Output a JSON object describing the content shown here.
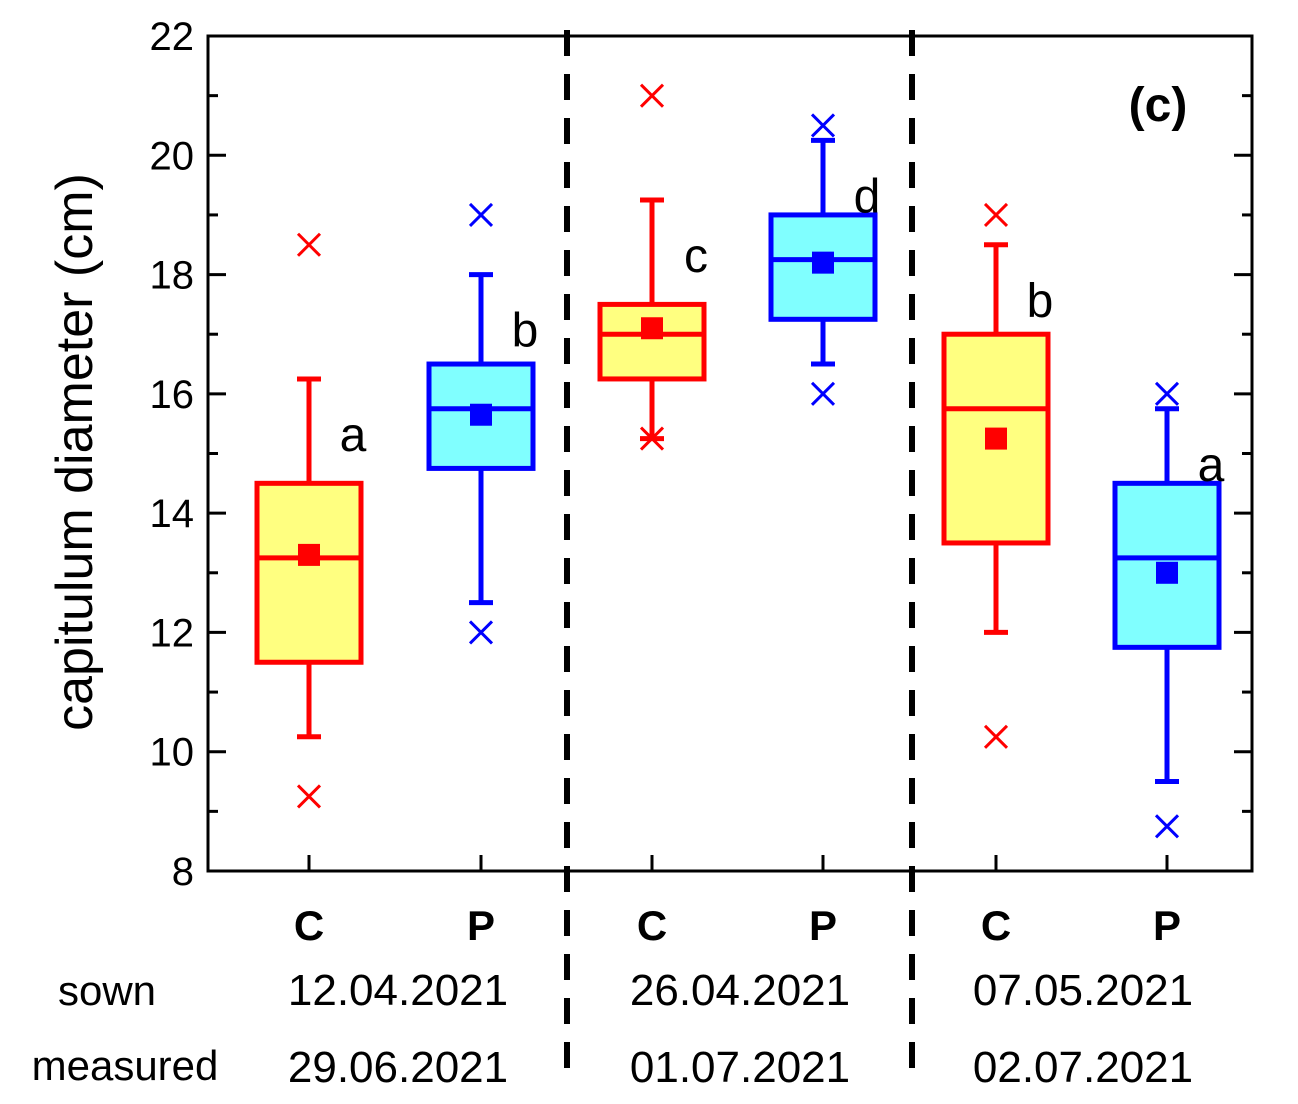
{
  "chart_data": {
    "type": "box",
    "panel_label": "(c)",
    "ylabel": "capitulum diameter (cm)",
    "ylim": [
      8,
      22
    ],
    "yticks": [
      "8",
      "10",
      "12",
      "14",
      "16",
      "18",
      "20",
      "22"
    ],
    "row_labels": {
      "sown": "sown",
      "measured": "measured"
    },
    "groups": [
      {
        "sown": "12.04.2021",
        "measured": "29.06.2021"
      },
      {
        "sown": "26.04.2021",
        "measured": "01.07.2021"
      },
      {
        "sown": "07.05.2021",
        "measured": "02.07.2021"
      }
    ],
    "colors": {
      "C": {
        "stroke": "#ff0000",
        "fill": "#ffff80"
      },
      "P": {
        "stroke": "#0000ff",
        "fill": "#80ffff"
      }
    },
    "boxes": [
      {
        "category": "C",
        "group": 0,
        "q1": 11.5,
        "median": 13.25,
        "q3": 14.5,
        "mean": 13.3,
        "whisker_low": 10.25,
        "whisker_high": 16.25,
        "min": 9.25,
        "max": 18.5,
        "sig": "a"
      },
      {
        "category": "P",
        "group": 0,
        "q1": 14.75,
        "median": 15.75,
        "q3": 16.5,
        "mean": 15.65,
        "whisker_low": 12.5,
        "whisker_high": 18.0,
        "min": 12.0,
        "max": 19.0,
        "sig": "b"
      },
      {
        "category": "C",
        "group": 1,
        "q1": 16.25,
        "median": 17.0,
        "q3": 17.5,
        "mean": 17.1,
        "whisker_low": 15.25,
        "whisker_high": 19.25,
        "min": 15.25,
        "max": 21.0,
        "sig": "c"
      },
      {
        "category": "P",
        "group": 1,
        "q1": 17.25,
        "median": 18.25,
        "q3": 19.0,
        "mean": 18.2,
        "whisker_low": 16.5,
        "whisker_high": 20.25,
        "min": 16.0,
        "max": 20.5,
        "sig": "d"
      },
      {
        "category": "C",
        "group": 2,
        "q1": 13.5,
        "median": 15.75,
        "q3": 17.0,
        "mean": 15.25,
        "whisker_low": 12.0,
        "whisker_high": 18.5,
        "min": 10.25,
        "max": 19.0,
        "sig": "b"
      },
      {
        "category": "P",
        "group": 2,
        "q1": 11.75,
        "median": 13.25,
        "q3": 14.5,
        "mean": 13.0,
        "whisker_low": 9.5,
        "whisker_high": 15.75,
        "min": 8.75,
        "max": 16.0,
        "sig": "a"
      }
    ]
  }
}
